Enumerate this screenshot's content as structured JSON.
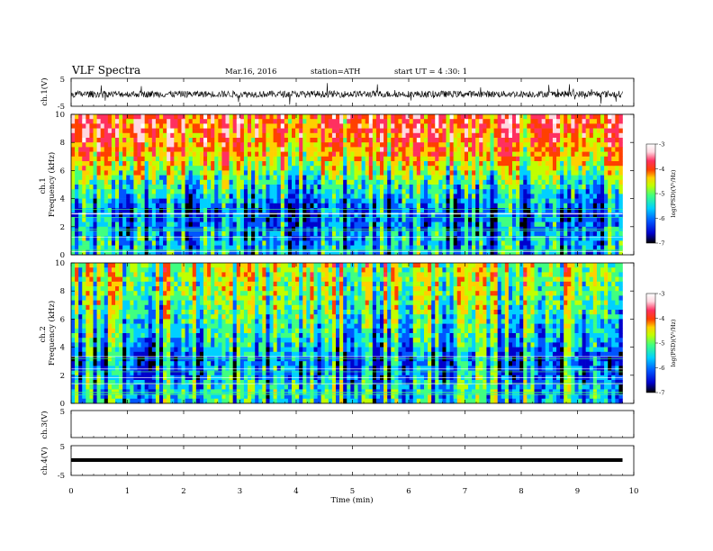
{
  "header": {
    "title": "VLF  Spectra",
    "date": "Mar.16, 2016",
    "station": "station=ATH",
    "start": "start  UT  =   4  :30: 1"
  },
  "colors": {
    "scale": [
      "#000000",
      "#0000cc",
      "#0055ff",
      "#00d0ff",
      "#40ff80",
      "#c0ff00",
      "#ffd000",
      "#ff4000",
      "#ff3060",
      "#ffd8e0",
      "#ffffff"
    ]
  },
  "chart_data": [
    {
      "type": "line",
      "id": "ch1",
      "ylabel": "ch.1(V)",
      "xlim": [
        0,
        10
      ],
      "ylim": [
        -5,
        5
      ],
      "y_ticks": [
        "5",
        "-5"
      ],
      "series": [
        {
          "x_range": [
            0,
            9.8
          ],
          "description_values": {
            "baseline": 0,
            "typical_amplitude": 1.2,
            "max_spike": 4
          }
        }
      ]
    },
    {
      "type": "heatmap",
      "id": "spec1",
      "ylabel": "ch.1\nFrequency (kHz)",
      "xlabel": "",
      "xlim": [
        0,
        10
      ],
      "ylim": [
        0,
        10
      ],
      "y_ticks": [
        "0",
        "2",
        "4",
        "6",
        "8",
        "10"
      ],
      "colorbar": {
        "label": "log(PSD)(V²/Hz)",
        "range": [
          -7,
          -3
        ],
        "ticks": [
          "-3",
          "-4",
          "-5",
          "-6",
          "-7"
        ]
      },
      "rows_logPSD": [
        {
          "freq_khz": 9,
          "value": -4.1
        },
        {
          "freq_khz": 7,
          "value": -4.6
        },
        {
          "freq_khz": 5,
          "value": -5.6
        },
        {
          "freq_khz": 3,
          "value": -6.3
        },
        {
          "freq_khz": 1,
          "value": -5.9
        }
      ]
    },
    {
      "type": "heatmap",
      "id": "spec2",
      "ylabel": "ch.2\nFrequency (kHz)",
      "xlim": [
        0,
        10
      ],
      "ylim": [
        0,
        10
      ],
      "y_ticks": [
        "0",
        "2",
        "4",
        "6",
        "8",
        "10"
      ],
      "colorbar": {
        "label": "log(PSD)(V²/Hz)",
        "range": [
          -7,
          -3
        ],
        "ticks": [
          "-3",
          "-4",
          "-5",
          "-6",
          "-7"
        ]
      },
      "rows_logPSD": [
        {
          "freq_khz": 9,
          "value": -5.0
        },
        {
          "freq_khz": 7,
          "value": -5.3
        },
        {
          "freq_khz": 5,
          "value": -5.6
        },
        {
          "freq_khz": 3,
          "value": -6.2
        },
        {
          "freq_khz": 1,
          "value": -5.7
        }
      ]
    },
    {
      "type": "line",
      "id": "ch3",
      "ylabel": "ch.3(V)",
      "xlim": [
        0,
        10
      ],
      "ylim": [
        -5,
        5
      ],
      "y_ticks": [
        "5"
      ],
      "series": []
    },
    {
      "type": "line",
      "id": "ch4",
      "ylabel": "ch.4(V)",
      "xlabel": "Time  (min)",
      "xlim": [
        0,
        10
      ],
      "ylim": [
        -5,
        5
      ],
      "y_ticks": [
        "5",
        "-5"
      ],
      "x_ticks": [
        "0",
        "1",
        "2",
        "3",
        "4",
        "5",
        "6",
        "7",
        "8",
        "9",
        "10"
      ],
      "series": [
        {
          "x_range": [
            0,
            9.8
          ],
          "constant_value": -0.3
        }
      ]
    }
  ]
}
